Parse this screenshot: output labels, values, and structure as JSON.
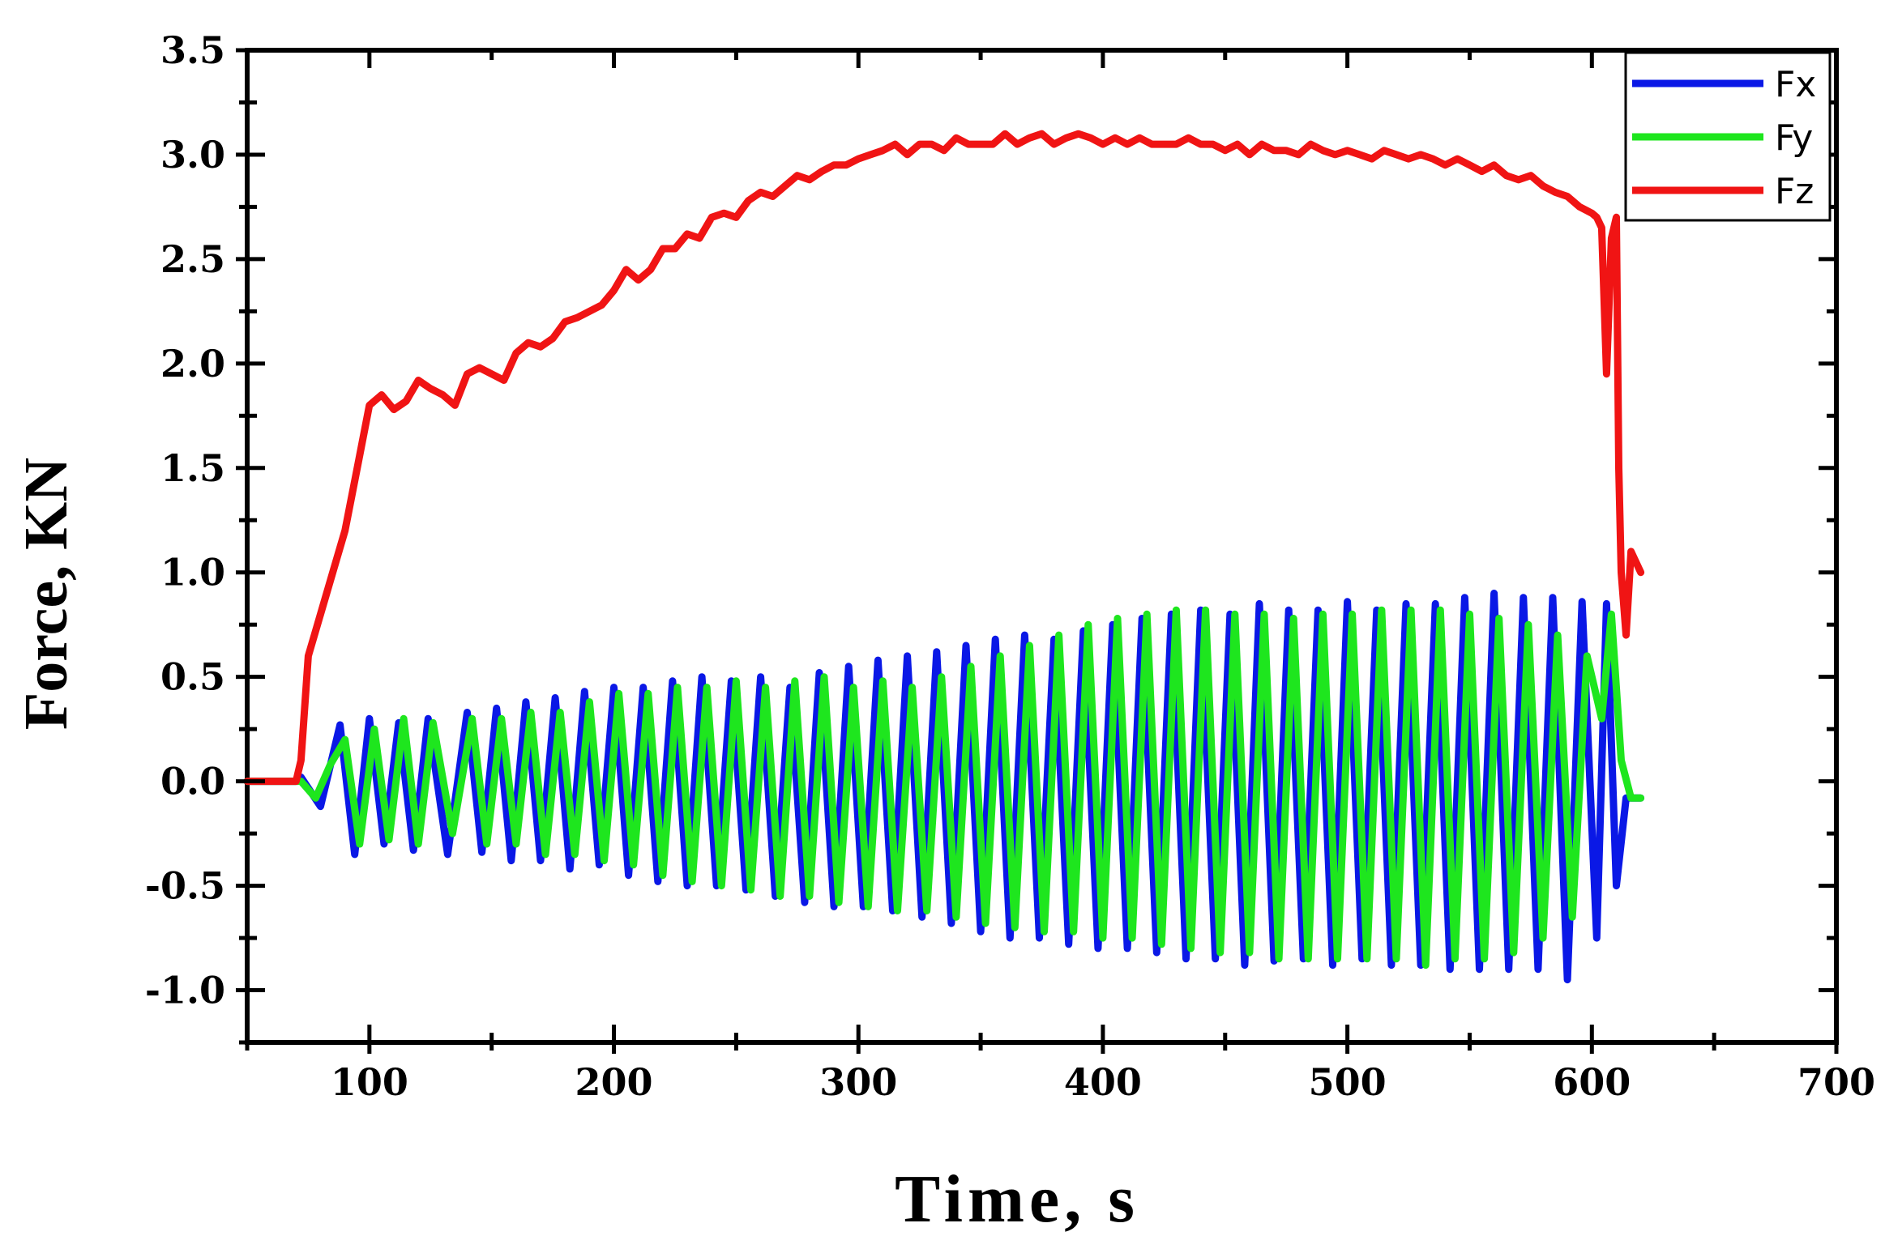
{
  "chart_data": {
    "type": "line",
    "title": "",
    "xlabel": "Time, s",
    "ylabel": "Force, KN",
    "xlim": [
      50,
      700
    ],
    "ylim": [
      -1.25,
      3.5
    ],
    "xticks": [
      100,
      200,
      300,
      400,
      500,
      600,
      700
    ],
    "xtick_labels": [
      "100",
      "200",
      "300",
      "400",
      "500",
      "600",
      "700"
    ],
    "yticks": [
      -1.0,
      -0.5,
      0.0,
      0.5,
      1.0,
      1.5,
      2.0,
      2.5,
      3.0,
      3.5
    ],
    "ytick_labels": [
      "-1.0",
      "-0.5",
      "0.0",
      "0.5",
      "1.0",
      "1.5",
      "2.0",
      "2.5",
      "3.0",
      "3.5"
    ],
    "grid": false,
    "legend_position": "top-right",
    "series": [
      {
        "name": "Fx",
        "color": "#0a18e6",
        "x": [
          50,
          70,
          72,
          80,
          88,
          94,
          100,
          106,
          112,
          118,
          124,
          132,
          140,
          146,
          152,
          158,
          164,
          170,
          176,
          182,
          188,
          194,
          200,
          206,
          212,
          218,
          224,
          230,
          236,
          242,
          248,
          254,
          260,
          266,
          272,
          278,
          284,
          290,
          296,
          302,
          308,
          314,
          320,
          326,
          332,
          338,
          344,
          350,
          356,
          362,
          368,
          374,
          380,
          386,
          392,
          398,
          404,
          410,
          416,
          422,
          428,
          434,
          440,
          446,
          452,
          458,
          464,
          470,
          476,
          482,
          488,
          494,
          500,
          506,
          512,
          518,
          524,
          530,
          536,
          542,
          548,
          554,
          560,
          566,
          572,
          578,
          584,
          590,
          596,
          602,
          606,
          610,
          614,
          620
        ],
        "y": [
          0.0,
          0.0,
          0.02,
          -0.12,
          0.27,
          -0.35,
          0.3,
          -0.3,
          0.28,
          -0.33,
          0.3,
          -0.35,
          0.33,
          -0.34,
          0.35,
          -0.38,
          0.38,
          -0.38,
          0.4,
          -0.42,
          0.43,
          -0.4,
          0.45,
          -0.45,
          0.45,
          -0.48,
          0.48,
          -0.5,
          0.5,
          -0.5,
          0.48,
          -0.52,
          0.5,
          -0.55,
          0.45,
          -0.58,
          0.52,
          -0.6,
          0.55,
          -0.6,
          0.58,
          -0.62,
          0.6,
          -0.65,
          0.62,
          -0.68,
          0.65,
          -0.72,
          0.68,
          -0.75,
          0.7,
          -0.75,
          0.68,
          -0.78,
          0.72,
          -0.8,
          0.75,
          -0.8,
          0.78,
          -0.82,
          0.8,
          -0.85,
          0.82,
          -0.85,
          0.8,
          -0.88,
          0.85,
          -0.86,
          0.82,
          -0.85,
          0.82,
          -0.88,
          0.86,
          -0.85,
          0.82,
          -0.88,
          0.85,
          -0.88,
          0.85,
          -0.9,
          0.88,
          -0.9,
          0.9,
          -0.9,
          0.88,
          -0.9,
          0.88,
          -0.95,
          0.86,
          -0.75,
          0.85,
          -0.5,
          -0.08,
          -0.08
        ]
      },
      {
        "name": "Fy",
        "color": "#1ee61e",
        "x": [
          50,
          72,
          78,
          84,
          90,
          96,
          102,
          108,
          114,
          120,
          126,
          134,
          142,
          148,
          154,
          160,
          166,
          172,
          178,
          184,
          190,
          196,
          202,
          208,
          214,
          220,
          226,
          232,
          238,
          244,
          250,
          256,
          262,
          268,
          274,
          280,
          286,
          292,
          298,
          304,
          310,
          316,
          322,
          328,
          334,
          340,
          346,
          352,
          358,
          364,
          370,
          376,
          382,
          388,
          394,
          400,
          406,
          412,
          418,
          424,
          430,
          436,
          442,
          448,
          454,
          460,
          466,
          472,
          478,
          484,
          490,
          496,
          502,
          508,
          514,
          520,
          526,
          532,
          538,
          544,
          550,
          556,
          562,
          568,
          574,
          580,
          586,
          592,
          598,
          604,
          608,
          612,
          616,
          620
        ],
        "y": [
          0.0,
          0.0,
          -0.08,
          0.08,
          0.2,
          -0.3,
          0.25,
          -0.28,
          0.3,
          -0.3,
          0.28,
          -0.25,
          0.3,
          -0.3,
          0.3,
          -0.3,
          0.33,
          -0.35,
          0.33,
          -0.35,
          0.38,
          -0.38,
          0.42,
          -0.4,
          0.42,
          -0.45,
          0.45,
          -0.48,
          0.45,
          -0.5,
          0.48,
          -0.52,
          0.45,
          -0.55,
          0.48,
          -0.55,
          0.5,
          -0.58,
          0.45,
          -0.6,
          0.48,
          -0.62,
          0.45,
          -0.62,
          0.5,
          -0.65,
          0.55,
          -0.68,
          0.6,
          -0.7,
          0.65,
          -0.72,
          0.7,
          -0.72,
          0.75,
          -0.75,
          0.78,
          -0.75,
          0.8,
          -0.78,
          0.82,
          -0.8,
          0.82,
          -0.82,
          0.8,
          -0.82,
          0.8,
          -0.85,
          0.78,
          -0.85,
          0.8,
          -0.85,
          0.8,
          -0.85,
          0.82,
          -0.85,
          0.82,
          -0.88,
          0.82,
          -0.85,
          0.8,
          -0.85,
          0.78,
          -0.82,
          0.75,
          -0.75,
          0.7,
          -0.65,
          0.6,
          0.3,
          0.8,
          0.1,
          -0.08,
          -0.08
        ]
      },
      {
        "name": "Fz",
        "color": "#f01414",
        "x": [
          50,
          70,
          72,
          75,
          80,
          85,
          90,
          95,
          100,
          105,
          110,
          115,
          120,
          125,
          130,
          135,
          140,
          145,
          150,
          155,
          160,
          165,
          170,
          175,
          180,
          185,
          190,
          195,
          200,
          205,
          210,
          215,
          220,
          225,
          230,
          235,
          240,
          245,
          250,
          255,
          260,
          265,
          270,
          275,
          280,
          285,
          290,
          295,
          300,
          305,
          310,
          315,
          320,
          325,
          330,
          335,
          340,
          345,
          350,
          355,
          360,
          365,
          370,
          375,
          380,
          385,
          390,
          395,
          400,
          405,
          410,
          415,
          420,
          425,
          430,
          435,
          440,
          445,
          450,
          455,
          460,
          465,
          470,
          475,
          480,
          485,
          490,
          495,
          500,
          505,
          510,
          515,
          520,
          525,
          530,
          535,
          540,
          545,
          550,
          555,
          560,
          565,
          570,
          575,
          580,
          585,
          590,
          595,
          600,
          602,
          604,
          606,
          608,
          610,
          611,
          612,
          614,
          616,
          620
        ],
        "y": [
          0.0,
          0.0,
          0.1,
          0.6,
          0.8,
          1.0,
          1.2,
          1.5,
          1.8,
          1.85,
          1.78,
          1.82,
          1.92,
          1.88,
          1.85,
          1.8,
          1.95,
          1.98,
          1.95,
          1.92,
          2.05,
          2.1,
          2.08,
          2.12,
          2.2,
          2.22,
          2.25,
          2.28,
          2.35,
          2.45,
          2.4,
          2.45,
          2.55,
          2.55,
          2.62,
          2.6,
          2.7,
          2.72,
          2.7,
          2.78,
          2.82,
          2.8,
          2.85,
          2.9,
          2.88,
          2.92,
          2.95,
          2.95,
          2.98,
          3.0,
          3.02,
          3.05,
          3.0,
          3.05,
          3.05,
          3.02,
          3.08,
          3.05,
          3.05,
          3.05,
          3.1,
          3.05,
          3.08,
          3.1,
          3.05,
          3.08,
          3.1,
          3.08,
          3.05,
          3.08,
          3.05,
          3.08,
          3.05,
          3.05,
          3.05,
          3.08,
          3.05,
          3.05,
          3.02,
          3.05,
          3.0,
          3.05,
          3.02,
          3.02,
          3.0,
          3.05,
          3.02,
          3.0,
          3.02,
          3.0,
          2.98,
          3.02,
          3.0,
          2.98,
          3.0,
          2.98,
          2.95,
          2.98,
          2.95,
          2.92,
          2.95,
          2.9,
          2.88,
          2.9,
          2.85,
          2.82,
          2.8,
          2.75,
          2.72,
          2.7,
          2.65,
          1.95,
          2.6,
          2.7,
          1.5,
          1.0,
          0.7,
          1.1,
          1.0
        ]
      }
    ]
  }
}
